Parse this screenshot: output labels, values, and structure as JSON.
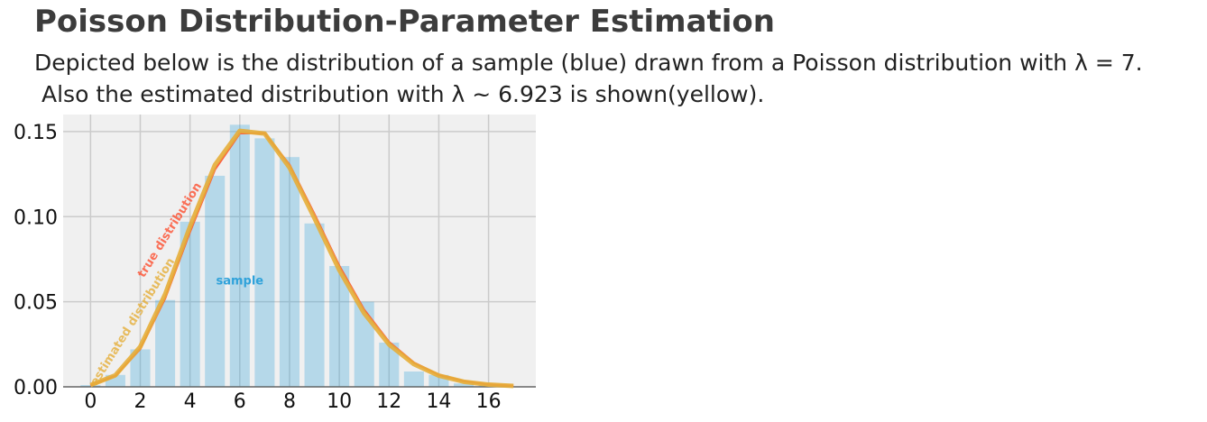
{
  "header": {
    "title": "Poisson Distribution-Parameter Estimation",
    "subtitle_line1": "Depicted below is the distribution of a sample (blue) drawn from a Poisson distribution with λ = 7.",
    "subtitle_line2": "Also the estimated distribution with λ ~ 6.923 is shown(yellow)."
  },
  "colors": {
    "background": "#f0f0f0",
    "grid": "#cbcbcb",
    "bar": "#30a2da",
    "true_line": "#fc4f30",
    "estimated_line": "#e5ae38",
    "sample_label": "#30a2da"
  },
  "chart_data": {
    "type": "bar",
    "xlim": [
      -1.1,
      17.9
    ],
    "ylim": [
      0,
      0.16
    ],
    "x_ticks": [
      0,
      2,
      4,
      6,
      8,
      10,
      12,
      14,
      16
    ],
    "y_ticks": [
      0.0,
      0.05,
      0.1,
      0.15
    ],
    "x_tick_labels": [
      "0",
      "2",
      "4",
      "6",
      "8",
      "10",
      "12",
      "14",
      "16"
    ],
    "y_tick_labels": [
      "0.00",
      "0.05",
      "0.10",
      "0.15"
    ],
    "grid": true,
    "series": [
      {
        "name": "sample",
        "kind": "bar",
        "x": [
          0,
          1,
          2,
          3,
          4,
          5,
          6,
          7,
          8,
          9,
          10,
          11,
          12,
          13,
          14,
          15,
          16
        ],
        "values": [
          0.001,
          0.007,
          0.022,
          0.051,
          0.097,
          0.124,
          0.154,
          0.146,
          0.135,
          0.096,
          0.071,
          0.05,
          0.026,
          0.009,
          0.007,
          0.002,
          0.001
        ]
      },
      {
        "name": "true distribution",
        "kind": "line",
        "x": [
          0,
          1,
          2,
          3,
          4,
          5,
          6,
          7,
          8,
          9,
          10,
          11,
          12,
          13,
          14,
          15,
          16,
          17
        ],
        "values": [
          0.0009,
          0.0064,
          0.0223,
          0.0521,
          0.0912,
          0.1277,
          0.149,
          0.149,
          0.1304,
          0.1014,
          0.071,
          0.0452,
          0.0263,
          0.0142,
          0.0071,
          0.0033,
          0.0014,
          0.0006
        ]
      },
      {
        "name": "estimated distribution",
        "kind": "line",
        "x": [
          0,
          1,
          2,
          3,
          4,
          5,
          6,
          7,
          8,
          9,
          10,
          11,
          12,
          13,
          14,
          15,
          16,
          17
        ],
        "values": [
          0.001,
          0.0068,
          0.0236,
          0.0544,
          0.0942,
          0.1304,
          0.1504,
          0.1488,
          0.1288,
          0.0991,
          0.0686,
          0.0432,
          0.0249,
          0.0133,
          0.0066,
          0.003,
          0.0013,
          0.0005
        ]
      }
    ],
    "annotations": [
      {
        "text": "true distribution",
        "x": 3.2,
        "y": 0.092,
        "rotation": 58
      },
      {
        "text": "estimated distribution",
        "x": 1.7,
        "y": 0.038,
        "rotation": 58
      },
      {
        "text": "sample",
        "x": 6.0,
        "y": 0.062,
        "rotation": 0
      }
    ]
  }
}
